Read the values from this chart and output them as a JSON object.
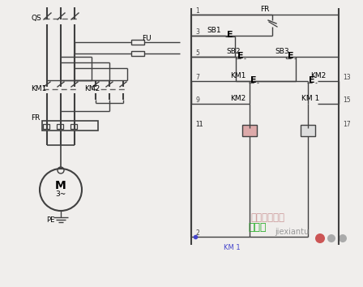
{
  "bg_color": "#f0eeec",
  "line_color": "#404040",
  "dash_color": "#606060",
  "label_QS": "QS",
  "label_FU": "FU",
  "label_KM1_left": "KM1",
  "label_KM2_left": "KM2",
  "label_FR_left": "FR",
  "label_FR_right": "FR",
  "label_SB1": "SB1",
  "label_SB2": "SB2",
  "label_SB3": "SB3",
  "label_KM1_right": "KM1",
  "label_KM2_right": "KM2",
  "label_KM2_coil": "KM2",
  "label_KM1_coil": "KM 1",
  "label_M": "M",
  "label_3phase": "3~",
  "label_PE": "PE",
  "wm1": "电工技术之家",
  "wm2": "jiexiantu",
  "wm3": "接线图",
  "wm_c1": "#cc9999",
  "wm_c2": "#999999",
  "wm_c3": "#22aa22",
  "coil_fc1": "#ddaaaa",
  "coil_fc2": "#dddddd",
  "blue_dot": "#4444cc"
}
